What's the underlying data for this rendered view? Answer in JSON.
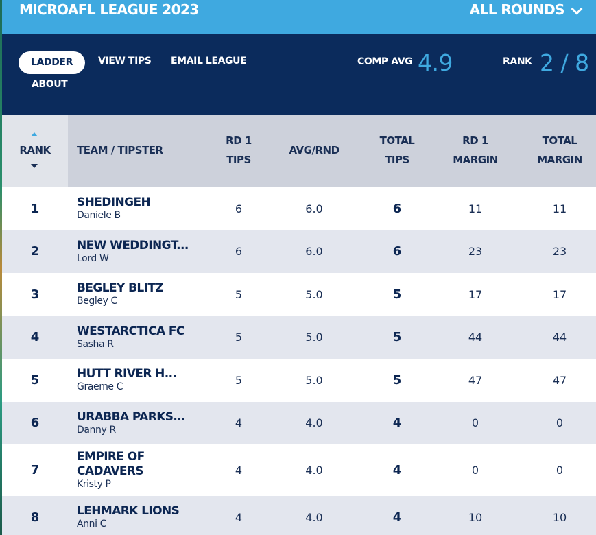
{
  "header": {
    "league_title": "MICROAFL LEAGUE 2023",
    "rounds_label": "ALL ROUNDS",
    "rounds_icon": "chevron-down-icon"
  },
  "nav": {
    "items": [
      {
        "label": "LADDER",
        "active": true
      },
      {
        "label": "VIEW TIPS",
        "active": false
      },
      {
        "label": "EMAIL LEAGUE",
        "active": false
      },
      {
        "label": "ABOUT",
        "active": false
      }
    ],
    "comp_avg_label": "COMP AVG",
    "comp_avg_value": "4.9",
    "rank_label": "RANK",
    "rank_value": "2 / 8"
  },
  "table": {
    "columns": {
      "rank": "RANK",
      "team": "TEAM / TIPSTER",
      "rd1_tips_1": "RD 1",
      "rd1_tips_2": "TIPS",
      "avg": "AVG/RND",
      "total_tips_1": "TOTAL",
      "total_tips_2": "TIPS",
      "rd1_margin_1": "RD 1",
      "rd1_margin_2": "MARGIN",
      "total_margin_1": "TOTAL",
      "total_margin_2": "MARGIN"
    },
    "rows": [
      {
        "rank": "1",
        "team": "SHEDINGEH",
        "tipster": "Daniele B",
        "rd1_tips": "6",
        "avg": "6.0",
        "total_tips": "6",
        "rd1_margin": "11",
        "total_margin": "11"
      },
      {
        "rank": "2",
        "team": "NEW WEDDINGT...",
        "tipster": "Lord W",
        "rd1_tips": "6",
        "avg": "6.0",
        "total_tips": "6",
        "rd1_margin": "23",
        "total_margin": "23"
      },
      {
        "rank": "3",
        "team": "BEGLEY BLITZ",
        "tipster": "Begley C",
        "rd1_tips": "5",
        "avg": "5.0",
        "total_tips": "5",
        "rd1_margin": "17",
        "total_margin": "17"
      },
      {
        "rank": "4",
        "team": "WESTARCTICA FC",
        "tipster": "Sasha R",
        "rd1_tips": "5",
        "avg": "5.0",
        "total_tips": "5",
        "rd1_margin": "44",
        "total_margin": "44"
      },
      {
        "rank": "5",
        "team": "HUTT RIVER H...",
        "tipster": "Graeme C",
        "rd1_tips": "5",
        "avg": "5.0",
        "total_tips": "5",
        "rd1_margin": "47",
        "total_margin": "47"
      },
      {
        "rank": "6",
        "team": "URABBA PARKS...",
        "tipster": "Danny R",
        "rd1_tips": "4",
        "avg": "4.0",
        "total_tips": "4",
        "rd1_margin": "0",
        "total_margin": "0"
      },
      {
        "rank": "7",
        "team": "EMPIRE OF CADAVERS",
        "tipster": "Kristy P",
        "rd1_tips": "4",
        "avg": "4.0",
        "total_tips": "4",
        "rd1_margin": "0",
        "total_margin": "0"
      },
      {
        "rank": "8",
        "team": "LEHMARK LIONS",
        "tipster": "Anni C",
        "rd1_tips": "4",
        "avg": "4.0",
        "total_tips": "4",
        "rd1_margin": "10",
        "total_margin": "10"
      }
    ]
  }
}
